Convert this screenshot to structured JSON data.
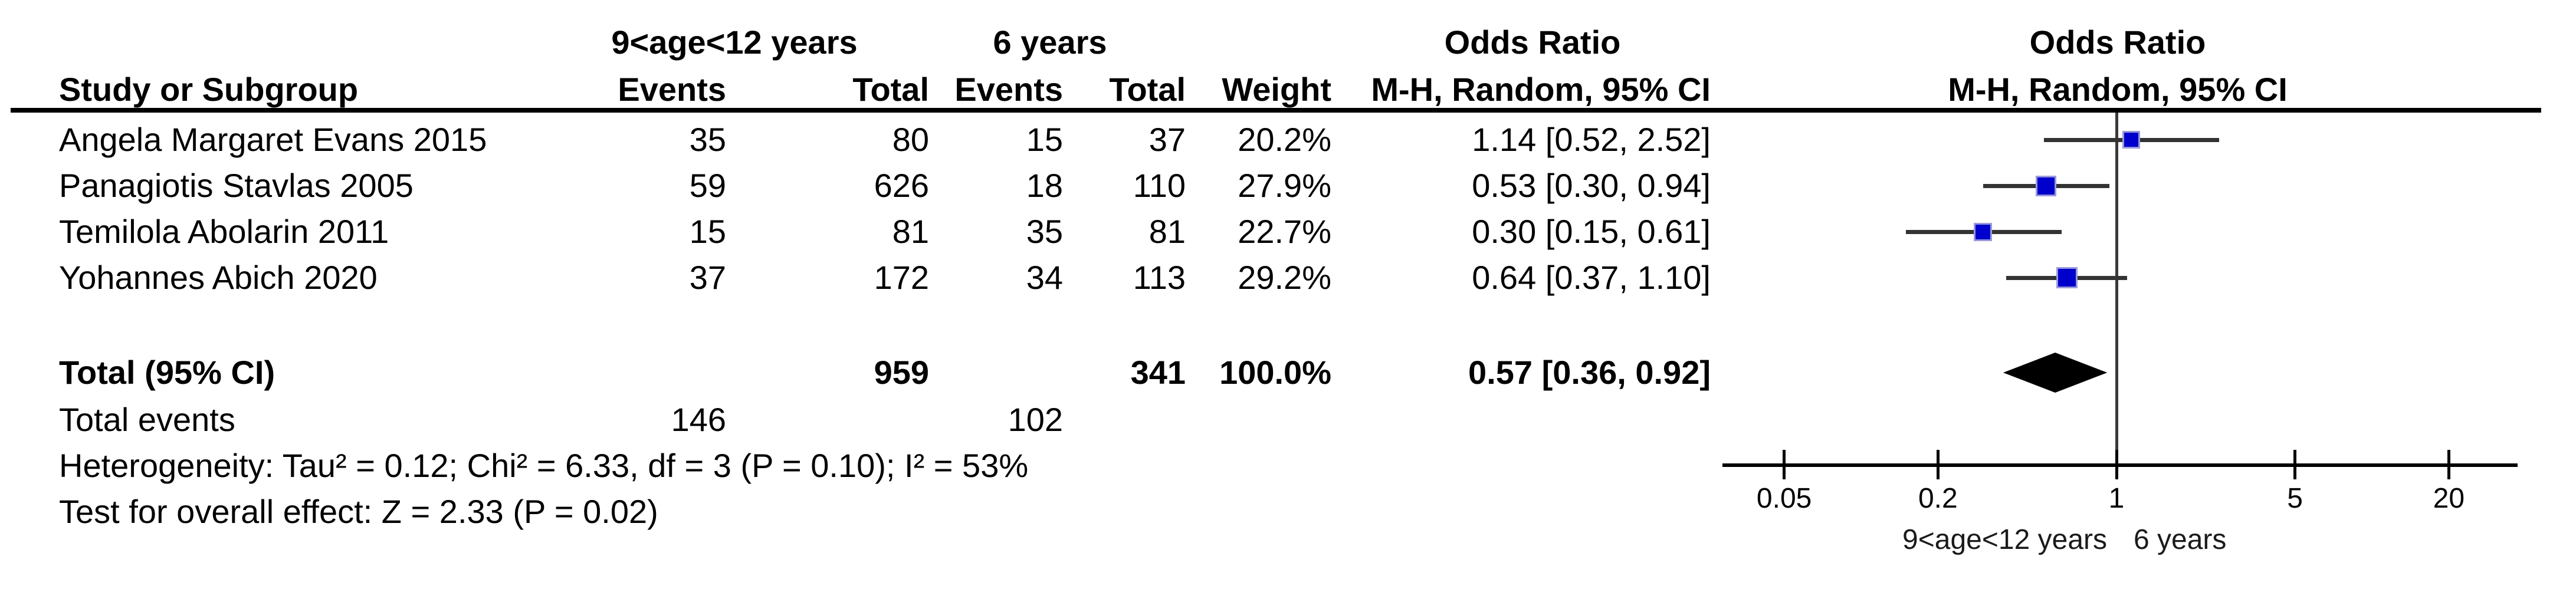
{
  "table": {
    "header": {
      "group1": "9<age<12 years",
      "group2": "6 years",
      "or_col_title": "Odds Ratio",
      "plot_col_title": "Odds Ratio",
      "study_col": "Study or Subgroup",
      "events_col": "Events",
      "total_col": "Total",
      "weight_col": "Weight",
      "mh_ci_col": "M-H, Random, 95% CI",
      "plot_mh_ci_col": "M-H, Random, 95% CI"
    },
    "rows": [
      {
        "study": "Angela Margaret Evans 2015",
        "e1": "35",
        "t1": "80",
        "e2": "15",
        "t2": "37",
        "weight": "20.2%",
        "ci": "1.14 [0.52, 2.52]"
      },
      {
        "study": "Panagiotis Stavlas 2005",
        "e1": "59",
        "t1": "626",
        "e2": "18",
        "t2": "110",
        "weight": "27.9%",
        "ci": "0.53 [0.30, 0.94]"
      },
      {
        "study": "Temilola Abolarin 2011",
        "e1": "15",
        "t1": "81",
        "e2": "35",
        "t2": "81",
        "weight": "22.7%",
        "ci": "0.30 [0.15, 0.61]"
      },
      {
        "study": "Yohannes Abich 2020",
        "e1": "37",
        "t1": "172",
        "e2": "34",
        "t2": "113",
        "weight": "29.2%",
        "ci": "0.64 [0.37, 1.10]"
      }
    ],
    "total_row": {
      "label": "Total (95% CI)",
      "t1": "959",
      "t2": "341",
      "weight": "100.0%",
      "ci": "0.57 [0.36, 0.92]"
    },
    "total_events_row": {
      "label": "Total events",
      "e1": "146",
      "e2": "102"
    },
    "heterogeneity": "Heterogeneity: Tau² = 0.12; Chi² = 6.33, df = 3 (P = 0.10); I² = 53%",
    "overall_effect": "Test for overall effect: Z = 2.33 (P = 0.02)"
  },
  "chart_data": {
    "type": "forest",
    "effect_measure": "Odds Ratio, M-H, Random, 95% CI",
    "x_scale": "log",
    "null_line": 1,
    "ticks": [
      0.05,
      0.2,
      1,
      5,
      20
    ],
    "xlim": [
      0.03,
      37
    ],
    "studies": [
      {
        "name": "Angela Margaret Evans 2015",
        "or": 1.14,
        "low": 0.52,
        "high": 2.52,
        "weight": 20.2
      },
      {
        "name": "Panagiotis Stavlas 2005",
        "or": 0.53,
        "low": 0.3,
        "high": 0.94,
        "weight": 27.9
      },
      {
        "name": "Temilola Abolarin 2011",
        "or": 0.3,
        "low": 0.15,
        "high": 0.61,
        "weight": 22.7
      },
      {
        "name": "Yohannes Abich 2020",
        "or": 0.64,
        "low": 0.37,
        "high": 1.1,
        "weight": 29.2
      }
    ],
    "total": {
      "label": "Total (95% CI)",
      "or": 0.57,
      "low": 0.36,
      "high": 0.92,
      "weight": 100.0
    },
    "axis_caption_left": "9<age<12 years",
    "axis_caption_right": "6 years",
    "colors": {
      "marker_fill": "#0000CC",
      "marker_border": "#9999DD",
      "ci_line": "#333333",
      "diamond": "#000000",
      "axis": "#000000"
    }
  }
}
